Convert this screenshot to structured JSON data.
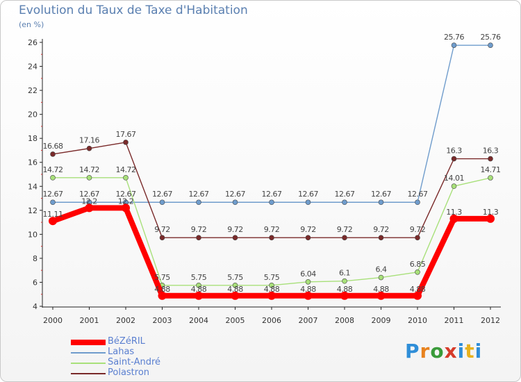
{
  "chart_data": {
    "type": "line",
    "title": "Evolution du Taux de Taxe d'Habitation",
    "subtitle": "(en %)",
    "x": [
      "2000",
      "2001",
      "2002",
      "2003",
      "2004",
      "2005",
      "2006",
      "2007",
      "2008",
      "2009",
      "2010",
      "2011",
      "2012"
    ],
    "ylim": [
      4,
      26
    ],
    "yticks": [
      4,
      6,
      8,
      10,
      12,
      14,
      16,
      18,
      20,
      22,
      24,
      26
    ],
    "grid": false,
    "legend_position": "bottom-left",
    "series": [
      {
        "name": "BéZéRIL",
        "color": "#ff0000",
        "highlight": true,
        "values": [
          11.11,
          12.2,
          12.2,
          4.88,
          4.88,
          4.88,
          4.88,
          4.88,
          4.88,
          4.88,
          4.88,
          11.3,
          11.3
        ]
      },
      {
        "name": "Lahas",
        "color": "#6f9ccc",
        "values": [
          12.67,
          12.67,
          12.67,
          12.67,
          12.67,
          12.67,
          12.67,
          12.67,
          12.67,
          12.67,
          12.67,
          25.76,
          25.76
        ]
      },
      {
        "name": "Saint-André",
        "color": "#a8e07a",
        "values": [
          14.72,
          14.72,
          14.72,
          5.75,
          5.75,
          5.75,
          5.75,
          6.04,
          6.1,
          6.4,
          6.85,
          14.01,
          14.71
        ]
      },
      {
        "name": "Polastron",
        "color": "#7a2a2a",
        "values": [
          16.68,
          17.16,
          17.67,
          9.72,
          9.72,
          9.72,
          9.72,
          9.72,
          9.72,
          9.72,
          9.72,
          16.3,
          16.3
        ]
      }
    ],
    "data_labels": [
      [
        "11.11",
        "12.2",
        "12.2",
        "4.88",
        "4.88",
        "4.88",
        "4.88",
        "4.88",
        "4.88",
        "4.88",
        "4.88",
        "11.3",
        "11.3"
      ],
      [
        "12.67",
        "12.67",
        "12.67",
        "12.67",
        "12.67",
        "12.67",
        "12.67",
        "12.67",
        "12.67",
        "12.67",
        "12.67",
        "25.76",
        "25.76"
      ],
      [
        "14.72",
        "14.72",
        "14.72",
        "5.75",
        "5.75",
        "5.75",
        "5.75",
        "6.04",
        "6.1",
        "6.4",
        "6.85",
        "14.01",
        "14.71"
      ],
      [
        "16.68",
        "17.16",
        "17.67",
        "9.72",
        "9.72",
        "9.72",
        "9.72",
        "9.72",
        "9.72",
        "9.72",
        "9.72",
        "16.3",
        "16.3"
      ]
    ]
  },
  "brand": {
    "letters": [
      "P",
      "r",
      "o",
      "x",
      "i",
      "t",
      "i"
    ],
    "colors": [
      "#2f8ed8",
      "#e8821e",
      "#3a9b3a",
      "#d63b2a",
      "#2f8ed8",
      "#e8b21e",
      "#2f8ed8"
    ]
  }
}
